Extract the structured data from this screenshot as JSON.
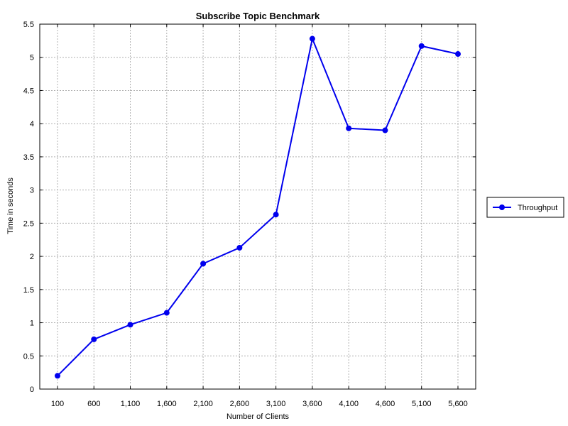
{
  "chart_data": {
    "type": "line",
    "title": "Subscribe Topic Benchmark",
    "xlabel": "Number of Clients",
    "ylabel": "Time in seconds",
    "categories": [
      "100",
      "600",
      "1,100",
      "1,600",
      "2,100",
      "2,600",
      "3,100",
      "3,600",
      "4,100",
      "4,600",
      "5,100",
      "5,600"
    ],
    "series": [
      {
        "name": "Throughput",
        "color": "#0000ee",
        "values": [
          0.2,
          0.75,
          0.97,
          1.15,
          1.89,
          2.13,
          2.63,
          5.28,
          3.93,
          3.9,
          5.17,
          5.05
        ]
      }
    ],
    "ylim": [
      0,
      5.5
    ],
    "yticks": [
      0,
      0.5,
      1,
      1.5,
      2,
      2.5,
      3,
      3.5,
      4,
      4.5,
      5,
      5.5
    ],
    "ytick_labels": [
      "0",
      "0.5",
      "1",
      "1.5",
      "2",
      "2.5",
      "3",
      "3.5",
      "4",
      "4.5",
      "5",
      "5.5"
    ],
    "grid": true,
    "legend_position": "right"
  }
}
